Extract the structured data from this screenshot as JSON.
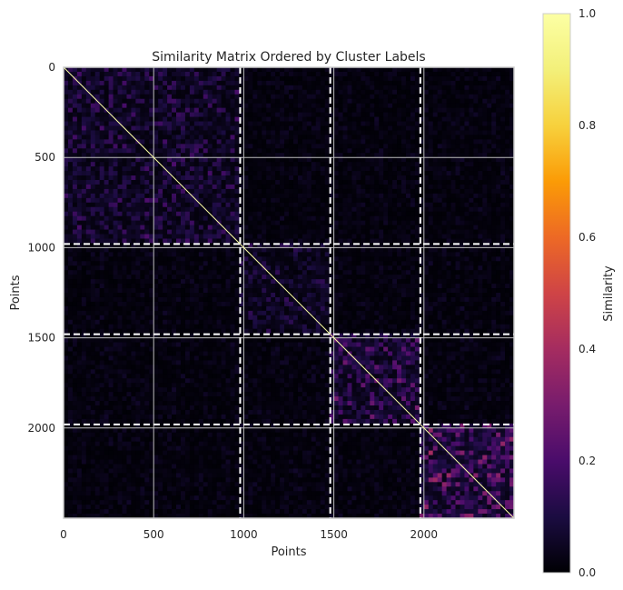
{
  "chart_data": {
    "type": "heatmap",
    "title": "Similarity Matrix Ordered by Cluster Labels",
    "xlabel": "Points",
    "ylabel": "Points",
    "n_points": 2500,
    "xlim": [
      0,
      2500
    ],
    "ylim": [
      2500,
      0
    ],
    "x_ticks": [
      0,
      500,
      1000,
      1500,
      2000
    ],
    "y_ticks": [
      0,
      500,
      1000,
      1500,
      2000
    ],
    "x_tick_labels": [
      "0",
      "500",
      "1000",
      "1500",
      "2000"
    ],
    "y_tick_labels": [
      "0",
      "500",
      "1000",
      "1500",
      "2000"
    ],
    "grid": true,
    "cluster_boundaries": [
      980,
      1480,
      1980
    ],
    "cluster_ranges": [
      [
        0,
        980
      ],
      [
        980,
        1480
      ],
      [
        1480,
        1980
      ],
      [
        1980,
        2500
      ]
    ],
    "diagonal_value": 1.0,
    "block_similarity": {
      "within_cluster": [
        0.1,
        0.08,
        0.15,
        0.2
      ],
      "between_clusters": 0.03
    },
    "colormap": "inferno",
    "colorbar": {
      "label": "Similarity",
      "min": 0.0,
      "max": 1.0,
      "ticks": [
        0.0,
        0.2,
        0.4,
        0.6,
        0.8,
        1.0
      ],
      "tick_labels": [
        "0.0",
        "0.2",
        "0.4",
        "0.6",
        "0.8",
        "1.0"
      ]
    }
  }
}
